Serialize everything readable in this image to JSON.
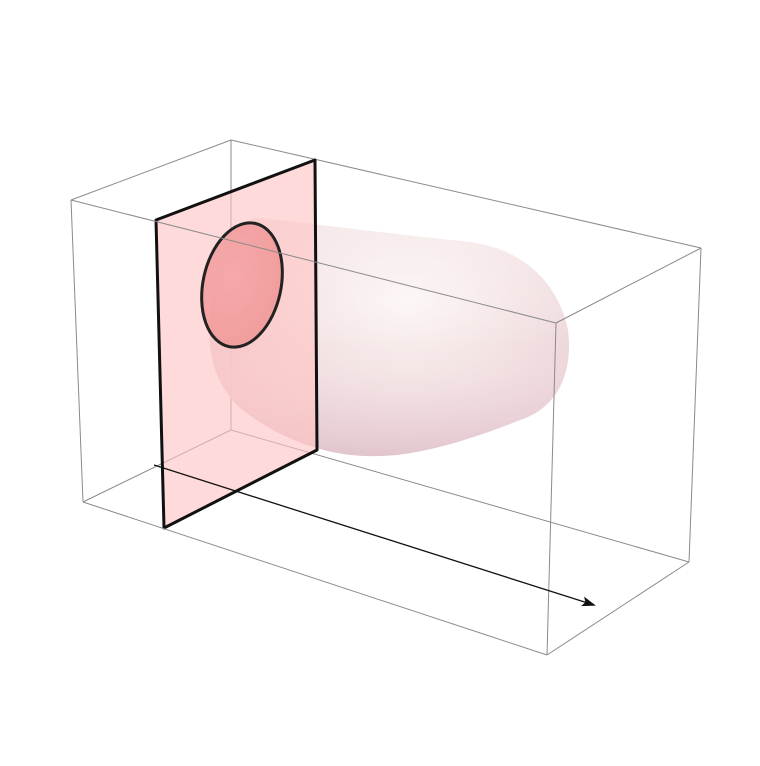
{
  "figure": {
    "kind": "3d-slice-diagram",
    "description_labels": [],
    "colors": {
      "box_edge": "#8a8a8a",
      "plane_fill": "#ffc9c9",
      "plane_edge": "#111111",
      "body_highlight": "#fbf3f2",
      "body_mid": "#efd2d4",
      "body_shadow": "#e3c2c8",
      "cross_section_fill": "#f29a9a",
      "cross_section_edge": "#222222",
      "arrow": "#111111"
    }
  }
}
